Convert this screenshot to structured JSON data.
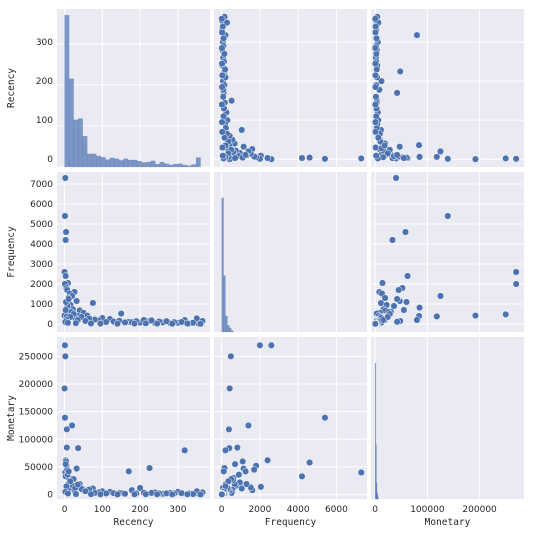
{
  "chart_data": {
    "type": "pairplot",
    "variables": [
      "Recency",
      "Frequency",
      "Monetary"
    ],
    "style": {
      "background": "#eaeaf2",
      "grid": true,
      "grid_color": "#ffffff",
      "marker_color": "#4c72b0",
      "marker_edge": "#ffffff"
    },
    "axes": {
      "Recency": {
        "range": [
          -20,
          385
        ],
        "ticks": [
          0,
          100,
          200,
          300
        ]
      },
      "Frequency": {
        "range": [
          -400,
          7600
        ],
        "ticks": [
          0,
          1000,
          2000,
          3000,
          4000,
          5000,
          6000,
          7000
        ],
        "x_ticks": [
          0,
          2000,
          4000,
          6000
        ]
      },
      "Monetary": {
        "range": [
          -8000,
          285000
        ],
        "ticks": [
          0,
          50000,
          100000,
          150000,
          200000,
          250000
        ],
        "x_ticks": [
          0,
          100000,
          200000
        ]
      }
    },
    "histograms": {
      "Recency": {
        "bin_edges": [
          0,
          12,
          24,
          36,
          48,
          60,
          72,
          84,
          96,
          108,
          120,
          132,
          144,
          156,
          168,
          180,
          192,
          204,
          216,
          228,
          240,
          252,
          264,
          276,
          288,
          300,
          312,
          324,
          336,
          348,
          360
        ],
        "counts": [
          370,
          215,
          115,
          118,
          75,
          32,
          32,
          27,
          24,
          18,
          22,
          20,
          16,
          20,
          17,
          17,
          14,
          11,
          12,
          15,
          7,
          12,
          8,
          5,
          7,
          8,
          5,
          3,
          6,
          23
        ]
      },
      "Frequency": {
        "bin_edges": [
          0,
          100,
          200,
          300,
          400,
          500,
          600
        ],
        "counts": [
          1,
          0.42,
          0.12,
          0.05,
          0.03,
          0.01
        ]
      },
      "Monetary": {
        "bin_edges": [
          0,
          1000,
          2000,
          3000,
          4000,
          5000,
          6000
        ],
        "counts": [
          1,
          0.4,
          0.12,
          0.05,
          0.03,
          0.01
        ]
      }
    },
    "points": [
      {
        "Recency": 2,
        "Frequency": 7300,
        "Monetary": 40000
      },
      {
        "Recency": 1,
        "Frequency": 5400,
        "Monetary": 139000
      },
      {
        "Recency": 4,
        "Frequency": 4600,
        "Monetary": 58000
      },
      {
        "Recency": 3,
        "Frequency": 4200,
        "Monetary": 33000
      },
      {
        "Recency": 0,
        "Frequency": 2600,
        "Monetary": 270000
      },
      {
        "Recency": 3,
        "Frequency": 2400,
        "Monetary": 62000
      },
      {
        "Recency": 9,
        "Frequency": 2050,
        "Monetary": 14000
      },
      {
        "Recency": 1,
        "Frequency": 2000,
        "Monetary": 270000
      },
      {
        "Recency": 5,
        "Frequency": 1800,
        "Monetary": 52000
      },
      {
        "Recency": 7,
        "Frequency": 1700,
        "Monetary": 45000
      },
      {
        "Recency": 26,
        "Frequency": 1600,
        "Monetary": 8000
      },
      {
        "Recency": 14,
        "Frequency": 1520,
        "Monetary": 13000
      },
      {
        "Recency": 20,
        "Frequency": 1400,
        "Monetary": 125000
      },
      {
        "Recency": 10,
        "Frequency": 1300,
        "Monetary": 19000
      },
      {
        "Recency": 32,
        "Frequency": 1150,
        "Monetary": 47000
      },
      {
        "Recency": 75,
        "Frequency": 1050,
        "Monetary": 11000
      },
      {
        "Recency": 16,
        "Frequency": 950,
        "Monetary": 22000
      },
      {
        "Recency": 6,
        "Frequency": 820,
        "Monetary": 85000
      },
      {
        "Recency": 22,
        "Frequency": 740,
        "Monetary": 16000
      },
      {
        "Recency": 40,
        "Frequency": 680,
        "Monetary": 19000
      },
      {
        "Recency": 12,
        "Frequency": 620,
        "Monetary": 30000
      },
      {
        "Recency": 50,
        "Frequency": 560,
        "Monetary": 9000
      },
      {
        "Recency": 150,
        "Frequency": 520,
        "Monetary": 3000
      },
      {
        "Recency": 2,
        "Frequency": 480,
        "Monetary": 250000
      },
      {
        "Recency": 0,
        "Frequency": 420,
        "Monetary": 192000
      },
      {
        "Recency": 36,
        "Frequency": 400,
        "Monetary": 84000
      },
      {
        "Recency": 6,
        "Frequency": 380,
        "Monetary": 118000
      },
      {
        "Recency": 318,
        "Frequency": 200,
        "Monetary": 80000
      },
      {
        "Recency": 225,
        "Frequency": 150,
        "Monetary": 48000
      },
      {
        "Recency": 170,
        "Frequency": 110,
        "Monetary": 42000
      },
      {
        "Recency": 178,
        "Frequency": 90,
        "Monetary": 8000
      },
      {
        "Recency": 200,
        "Frequency": 70,
        "Monetary": 12000
      },
      {
        "Recency": 240,
        "Frequency": 50,
        "Monetary": 4000
      },
      {
        "Recency": 280,
        "Frequency": 40,
        "Monetary": 3000
      },
      {
        "Recency": 300,
        "Frequency": 60,
        "Monetary": 5000
      },
      {
        "Recency": 330,
        "Frequency": 30,
        "Monetary": 2000
      },
      {
        "Recency": 355,
        "Frequency": 20,
        "Monetary": 1500
      },
      {
        "Recency": 365,
        "Frequency": 150,
        "Monetary": 4000
      },
      {
        "Recency": 350,
        "Frequency": 280,
        "Monetary": 6000
      },
      {
        "Recency": 120,
        "Frequency": 250,
        "Monetary": 5000
      },
      {
        "Recency": 100,
        "Frequency": 300,
        "Monetary": 6000
      },
      {
        "Recency": 90,
        "Frequency": 180,
        "Monetary": 4000
      },
      {
        "Recency": 60,
        "Frequency": 420,
        "Monetary": 7000
      },
      {
        "Recency": 80,
        "Frequency": 220,
        "Monetary": 3000
      },
      {
        "Recency": 130,
        "Frequency": 120,
        "Monetary": 2500
      },
      {
        "Recency": 260,
        "Frequency": 80,
        "Monetary": 1500
      },
      {
        "Recency": 210,
        "Frequency": 200,
        "Monetary": 3500
      },
      {
        "Recency": 190,
        "Frequency": 140,
        "Monetary": 2000
      },
      {
        "Recency": 310,
        "Frequency": 100,
        "Monetary": 2500
      },
      {
        "Recency": 340,
        "Frequency": 60,
        "Monetary": 1000
      },
      {
        "Recency": 230,
        "Frequency": 180,
        "Monetary": 3000
      },
      {
        "Recency": 145,
        "Frequency": 160,
        "Monetary": 2500
      },
      {
        "Recency": 65,
        "Frequency": 280,
        "Monetary": 9000
      },
      {
        "Recency": 45,
        "Frequency": 350,
        "Monetary": 10000
      },
      {
        "Recency": 28,
        "Frequency": 300,
        "Monetary": 12000
      },
      {
        "Recency": 18,
        "Frequency": 600,
        "Monetary": 26000
      },
      {
        "Recency": 8,
        "Frequency": 900,
        "Monetary": 36000
      },
      {
        "Recency": 4,
        "Frequency": 1100,
        "Monetary": 60000
      },
      {
        "Recency": 11,
        "Frequency": 1250,
        "Monetary": 42000
      },
      {
        "Recency": 3,
        "Frequency": 700,
        "Monetary": 55000
      },
      {
        "Recency": 24,
        "Frequency": 500,
        "Monetary": 28000
      },
      {
        "Recency": 35,
        "Frequency": 200,
        "Monetary": 18000
      },
      {
        "Recency": 15,
        "Frequency": 350,
        "Monetary": 24000
      },
      {
        "Recency": 55,
        "Frequency": 150,
        "Monetary": 6000
      },
      {
        "Recency": 110,
        "Frequency": 100,
        "Monetary": 2000
      },
      {
        "Recency": 160,
        "Frequency": 80,
        "Monetary": 1500
      },
      {
        "Recency": 250,
        "Frequency": 120,
        "Monetary": 2000
      },
      {
        "Recency": 290,
        "Frequency": 90,
        "Monetary": 1800
      },
      {
        "Recency": 270,
        "Frequency": 140,
        "Monetary": 2200
      },
      {
        "Recency": 5,
        "Frequency": 200,
        "Monetary": 15000
      },
      {
        "Recency": 2,
        "Frequency": 100,
        "Monetary": 5000
      },
      {
        "Recency": 9,
        "Frequency": 60,
        "Monetary": 2000
      },
      {
        "Recency": 30,
        "Frequency": 40,
        "Monetary": 1000
      },
      {
        "Recency": 70,
        "Frequency": 30,
        "Monetary": 800
      },
      {
        "Recency": 95,
        "Frequency": 20,
        "Monetary": 500
      },
      {
        "Recency": 140,
        "Frequency": 15,
        "Monetary": 400
      },
      {
        "Recency": 185,
        "Frequency": 25,
        "Monetary": 600
      },
      {
        "Recency": 215,
        "Frequency": 35,
        "Monetary": 700
      },
      {
        "Recency": 245,
        "Frequency": 20,
        "Monetary": 500
      },
      {
        "Recency": 285,
        "Frequency": 15,
        "Monetary": 400
      },
      {
        "Recency": 325,
        "Frequency": 25,
        "Monetary": 600
      },
      {
        "Recency": 360,
        "Frequency": 10,
        "Monetary": 300
      }
    ]
  }
}
